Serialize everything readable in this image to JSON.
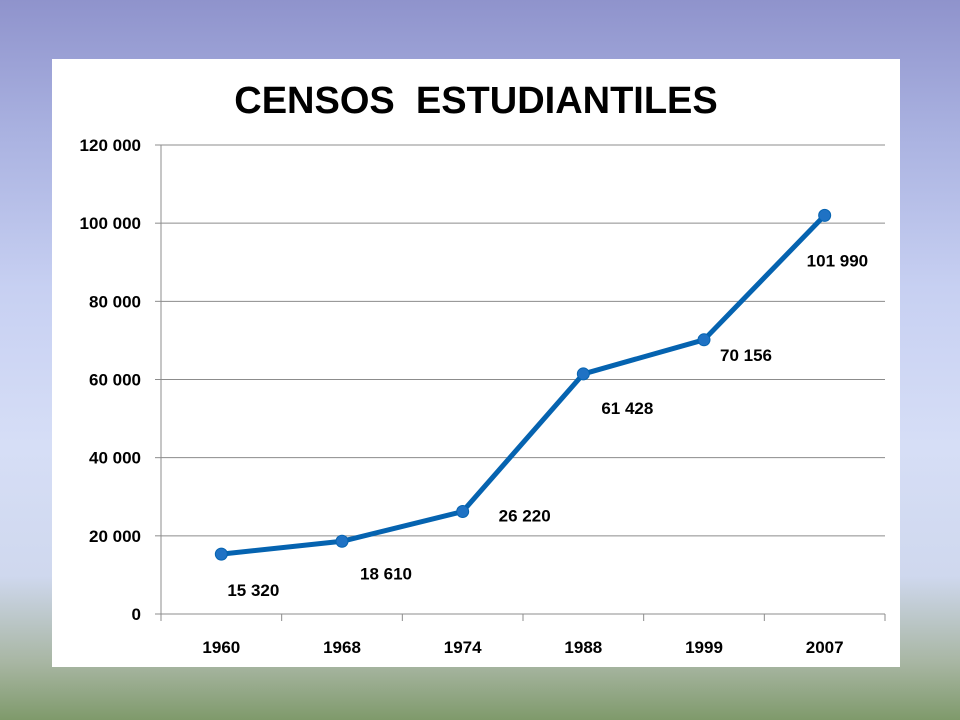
{
  "chart_data": {
    "type": "line",
    "title": "CENSOS  ESTUDIANTILES",
    "xlabel": "",
    "ylabel": "",
    "categories": [
      "1960",
      "1968",
      "1974",
      "1988",
      "1999",
      "2007"
    ],
    "series": [
      {
        "values": [
          15320,
          18610,
          26220,
          61428,
          70156,
          101990
        ],
        "data_labels": [
          "15 320",
          "18 610",
          "26 220",
          "61 428",
          "70 156",
          "101 990"
        ]
      }
    ],
    "ylim": [
      0,
      120000
    ],
    "yticks": [
      0,
      20000,
      40000,
      60000,
      80000,
      100000,
      120000
    ],
    "ytick_labels": [
      "0",
      "20 000",
      "40 000",
      "60 000",
      "80 000",
      "100 000",
      "120 000"
    ],
    "grid": true,
    "legend": "none",
    "colors": {
      "line": "#0563b0",
      "marker": "#1f72c4"
    }
  }
}
